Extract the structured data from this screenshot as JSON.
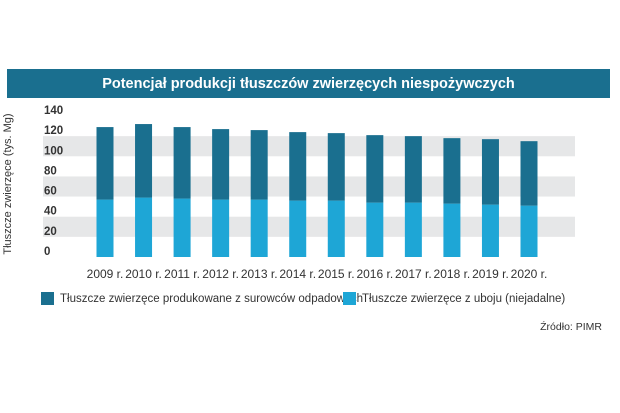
{
  "chart_data": {
    "type": "bar",
    "stacked": true,
    "title": "Potencjał produkcji tłuszczów zwierzęcych niespożywczych",
    "ylabel": "Tłuszcze zwierzęce (tys. Mg)",
    "xlabel": "",
    "ylim": [
      0,
      140
    ],
    "yticks": [
      0,
      20,
      40,
      60,
      80,
      100,
      120,
      140
    ],
    "categories": [
      "2009 r.",
      "2010 r.",
      "2011 r.",
      "2012 r.",
      "2013 r.",
      "2014 r.",
      "2015 r.",
      "2016 r.",
      "2017 r.",
      "2018 r.",
      "2019 r.",
      "2020 r."
    ],
    "series": [
      {
        "name": "Tłuszcze zwierzęce z uboju (niejadalne)",
        "color": "#1ea6d6",
        "values": [
          57,
          59,
          58,
          57,
          57,
          56,
          56,
          54,
          54,
          53,
          52,
          51
        ]
      },
      {
        "name": "Tłuszcze zwierzęce produkowane z surowców odpadowych",
        "color": "#1a6f8f",
        "values": [
          72,
          73,
          71,
          70,
          69,
          68,
          67,
          67,
          66,
          65,
          65,
          64
        ]
      }
    ],
    "grid": "alternating horizontal bands",
    "legend": "bottom",
    "source": "Źródło: PIMR"
  }
}
